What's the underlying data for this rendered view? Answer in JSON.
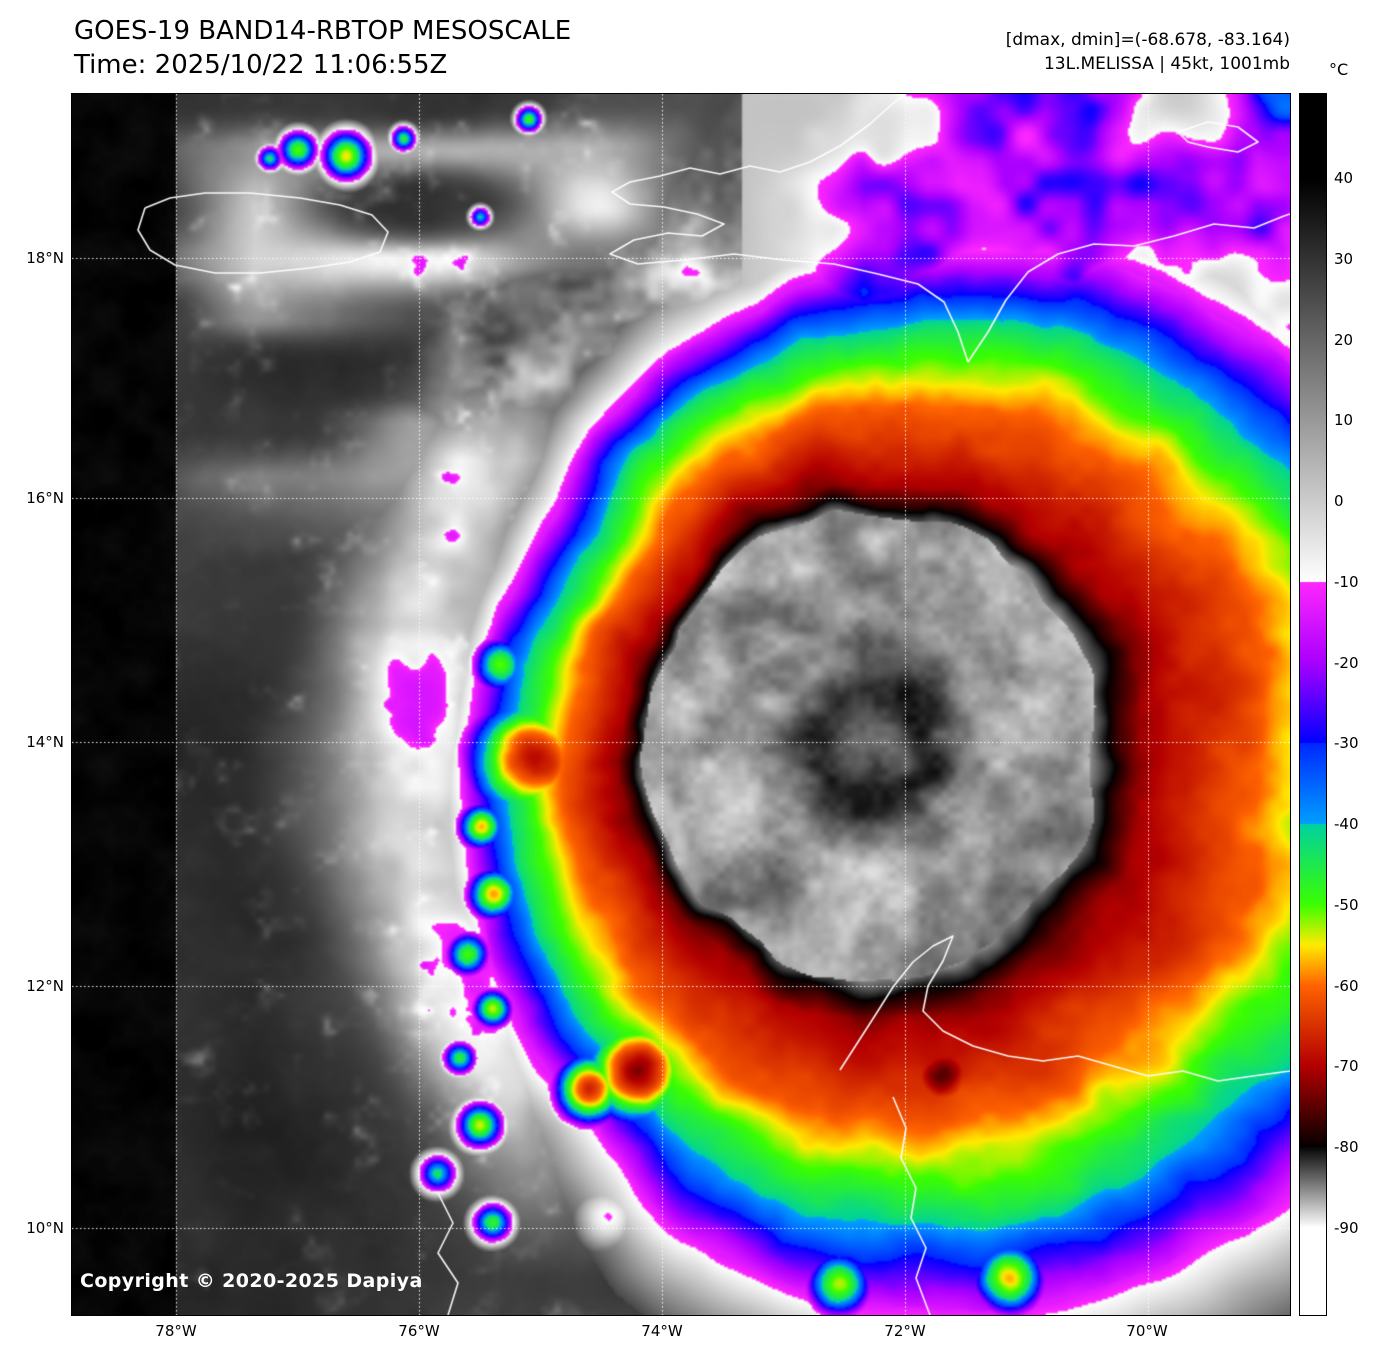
{
  "header": {
    "title": "GOES-19 BAND14-RBTOP MESOSCALE",
    "time": "Time: 2025/10/22 11:06:55Z",
    "dmax_dmin": "[dmax, dmin]=(-68.678, -83.164)",
    "storm": "13L.MELISSA | 45kt, 1001mb"
  },
  "map": {
    "copyright": "Copyright © 2020-2025 Dapiya",
    "lat_labels": [
      "18°N",
      "16°N",
      "14°N",
      "12°N",
      "10°N"
    ],
    "lon_labels": [
      "78°W",
      "76°W",
      "74°W",
      "72°W",
      "70°W"
    ]
  },
  "colorbar": {
    "unit": "°C",
    "ticks": [
      "40",
      "30",
      "20",
      "10",
      "0",
      "-10",
      "-20",
      "-30",
      "-40",
      "-50",
      "-60",
      "-70",
      "-80",
      "-90"
    ]
  },
  "colors": {
    "background": "#ffffff",
    "gridline": "#ffffff",
    "coastline": "#ffffff",
    "text": "#000000"
  }
}
